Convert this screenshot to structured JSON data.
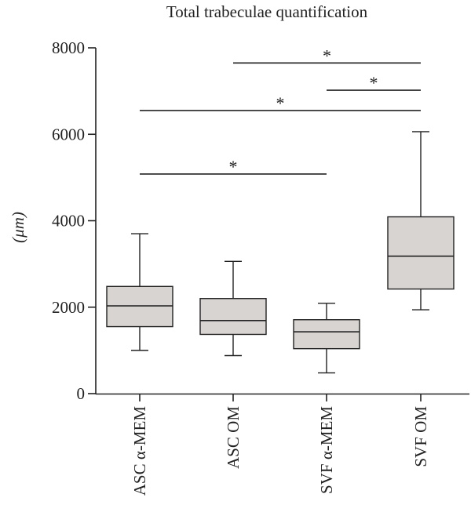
{
  "chart_data": {
    "type": "box",
    "title": "Total trabeculae quantification",
    "ylabel": "(μm)",
    "ylim": [
      0,
      8000
    ],
    "yticks": [
      0,
      2000,
      4000,
      6000,
      8000
    ],
    "categories": [
      "ASC α-MEM",
      "ASC OM",
      "SVF α-MEM",
      "SVF OM"
    ],
    "boxes": [
      {
        "category": "ASC α-MEM",
        "min": 1000,
        "q1": 1550,
        "median": 2030,
        "q3": 2480,
        "max": 3700
      },
      {
        "category": "ASC OM",
        "min": 880,
        "q1": 1370,
        "median": 1690,
        "q3": 2200,
        "max": 3060
      },
      {
        "category": "SVF α-MEM",
        "min": 480,
        "q1": 1040,
        "median": 1430,
        "q3": 1710,
        "max": 2090
      },
      {
        "category": "SVF OM",
        "min": 1940,
        "q1": 2420,
        "median": 3180,
        "q3": 4090,
        "max": 6060
      }
    ],
    "significance": [
      {
        "from": "ASC OM",
        "to": "SVF OM",
        "value": 7650,
        "label": "*"
      },
      {
        "from": "SVF α-MEM",
        "to": "SVF OM",
        "value": 7020,
        "label": "*"
      },
      {
        "from": "ASC α-MEM",
        "to": "SVF OM",
        "value": 6550,
        "label": "*"
      },
      {
        "from": "ASC α-MEM",
        "to": "SVF α-MEM",
        "value": 5080,
        "label": "*"
      }
    ],
    "colors": {
      "box_fill": "#d8d4d2",
      "line": "#222222"
    }
  }
}
